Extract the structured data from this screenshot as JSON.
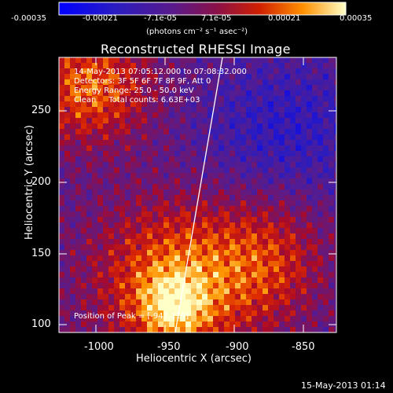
{
  "colorbar": {
    "ticks": [
      "-0.00035",
      "-0.00021",
      "-7.1e-05",
      "7.1e-05",
      "0.00021",
      "0.00035"
    ],
    "unit": "(photons cm⁻² s⁻¹ asec⁻²)",
    "range": [
      -0.00035,
      0.00035
    ]
  },
  "title": "Reconstructed RHESSI Image",
  "annotations": {
    "time": "14-May-2013 07:05:12.000 to 07:08:32.000",
    "detectors": "Detectors: 3F 5F 6F 7F 8F 9F, Att 0",
    "energy": "Energy Range: 25.0 - 50.0 keV",
    "clean": "Clean     Total counts: 6.63E+03",
    "peak": "Position of Peak = [-947,119]"
  },
  "axes": {
    "xlabel": "Heliocentric X (arcsec)",
    "ylabel": "Heliocentric Y (arcsec)",
    "xticks": [
      "-1000",
      "-950",
      "-900",
      "-850"
    ],
    "yticks": [
      "250",
      "200",
      "150",
      "100"
    ],
    "xlim": [
      -1025,
      -830
    ],
    "ylim": [
      97,
      283
    ]
  },
  "timestamp": "15-May-2013 01:14",
  "colors": {
    "background": "#000000",
    "frame": "#ffffff",
    "limb": "#ffffff"
  }
}
